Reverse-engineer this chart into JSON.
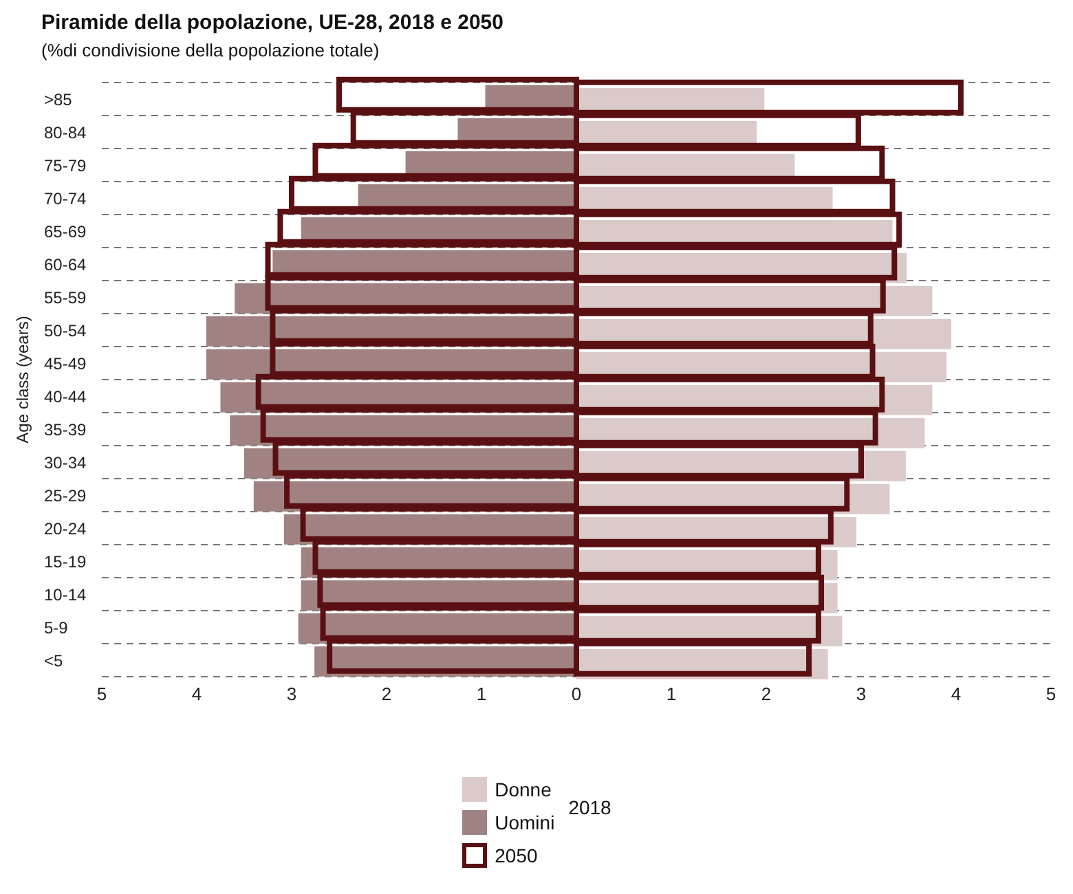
{
  "chart_data": {
    "type": "bar",
    "orientation": "horizontal",
    "title": "Piramide della popolazione, UE-28, 2018 e 2050",
    "subtitle": "(%di condivisione della popolazione totale)",
    "ylabel": "Age class (years)",
    "legend_title": "2018",
    "categories": [
      ">85",
      "80-84",
      "75-79",
      "70-74",
      "65-69",
      "60-64",
      "55-59",
      "50-54",
      "45-49",
      "40-44",
      "35-39",
      "30-34",
      "25-29",
      "20-24",
      "15-19",
      "10-14",
      "5-9",
      "<5"
    ],
    "series": [
      {
        "name": "Donne",
        "color": "#dacaca",
        "values": [
          1.98,
          1.9,
          2.3,
          2.7,
          3.33,
          3.48,
          3.75,
          3.95,
          3.9,
          3.75,
          3.67,
          3.47,
          3.3,
          2.95,
          2.75,
          2.75,
          2.8,
          2.65
        ]
      },
      {
        "name": "Uomini",
        "color": "#a08282",
        "values": [
          -0.96,
          -1.25,
          -1.8,
          -2.3,
          -2.9,
          -3.2,
          -3.6,
          -3.9,
          -3.9,
          -3.75,
          -3.65,
          -3.5,
          -3.4,
          -3.08,
          -2.9,
          -2.9,
          -2.93,
          -2.76
        ]
      },
      {
        "name": "2050",
        "color": "#5a1012",
        "values": [
          4.05,
          2.97,
          3.22,
          3.33,
          3.4,
          3.35,
          3.23,
          3.1,
          3.12,
          3.22,
          3.15,
          3.0,
          2.85,
          2.68,
          2.55,
          2.58,
          2.55,
          2.45
        ]
      },
      {
        "color": "#5a1012",
        "values": [
          -2.5,
          -2.35,
          -2.75,
          -3.0,
          -3.12,
          -3.25,
          -3.25,
          -3.2,
          -3.2,
          -3.35,
          -3.3,
          -3.17,
          -3.05,
          -2.88,
          -2.75,
          -2.7,
          -2.67,
          -2.6
        ]
      }
    ],
    "xlim": [
      -5,
      5
    ],
    "xticks": [
      {
        "value": -5,
        "label": "5"
      },
      {
        "value": -4,
        "label": "4"
      },
      {
        "value": -3,
        "label": "3"
      },
      {
        "value": -2,
        "label": "2"
      },
      {
        "value": -1,
        "label": "1"
      },
      0,
      1,
      2,
      3,
      4,
      5
    ],
    "grid": "y",
    "legend": "bottom"
  }
}
